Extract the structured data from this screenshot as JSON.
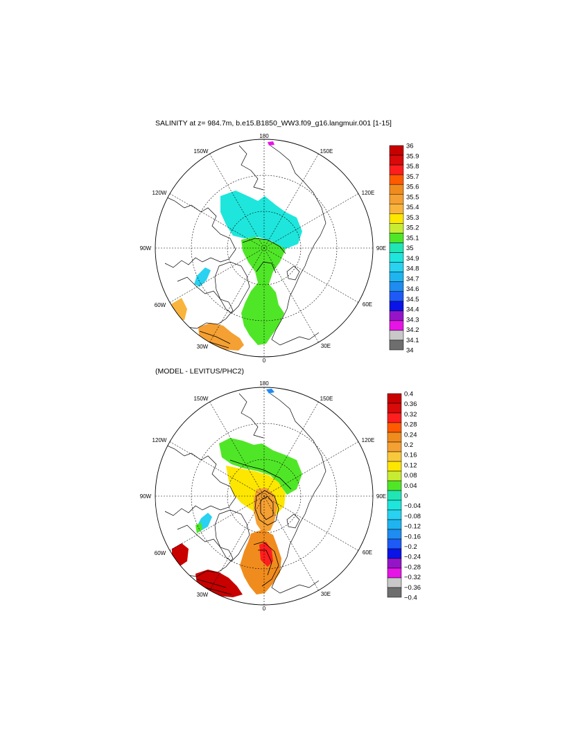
{
  "panel_top": {
    "title": "SALINITY at z= 984.7m, b.e15.B1850_WW3.f09_g16.langmuir.001 [1-15]",
    "lon_labels": [
      "180",
      "150E",
      "120E",
      "90E",
      "60E",
      "30E",
      "0",
      "30W",
      "60W",
      "90W",
      "120W",
      "150W"
    ],
    "colorbar_labels": [
      "36",
      "35.9",
      "35.8",
      "35.7",
      "35.6",
      "35.5",
      "35.4",
      "35.3",
      "35.2",
      "35.1",
      "35",
      "34.9",
      "34.8",
      "34.7",
      "34.6",
      "34.5",
      "34.4",
      "34.3",
      "34.2",
      "34.1",
      "34"
    ],
    "colorbar_colors": [
      "#c80000",
      "#d80a0a",
      "#ff1e1e",
      "#ff5a00",
      "#f08c1e",
      "#f5a032",
      "#f8b43c",
      "#fde600",
      "#c8ec32",
      "#50e628",
      "#1fe6b4",
      "#1ee6dc",
      "#28d2f0",
      "#1eb4f0",
      "#1e8cf0",
      "#1e5af5",
      "#0a14e6",
      "#9614c8",
      "#e614e6",
      "#c8c8c8",
      "#6e6e6e"
    ]
  },
  "panel_bottom": {
    "title": "(MODEL - LEVITUS/PHC2)",
    "lon_labels": [
      "180",
      "150E",
      "120E",
      "90E",
      "60E",
      "30E",
      "0",
      "30W",
      "60W",
      "90W",
      "120W",
      "150W"
    ],
    "colorbar_labels": [
      "0.4",
      "0.36",
      "0.32",
      "0.28",
      "0.24",
      "0.2",
      "0.16",
      "0.12",
      "0.08",
      "0.04",
      "0",
      "−0.04",
      "−0.08",
      "−0.12",
      "−0.16",
      "−0.2",
      "−0.24",
      "−0.28",
      "−0.32",
      "−0.36",
      "−0.4"
    ],
    "colorbar_colors": [
      "#c80000",
      "#d80a0a",
      "#ff1e1e",
      "#ff5a00",
      "#f08c1e",
      "#f5a032",
      "#f8c83c",
      "#fde600",
      "#c8ec32",
      "#50e628",
      "#1fe6b4",
      "#1ee6dc",
      "#28d2f0",
      "#1eb4f0",
      "#1e8cf0",
      "#1e5af5",
      "#0a14e6",
      "#9614c8",
      "#e614e6",
      "#c8c8c8",
      "#6e6e6e"
    ]
  }
}
